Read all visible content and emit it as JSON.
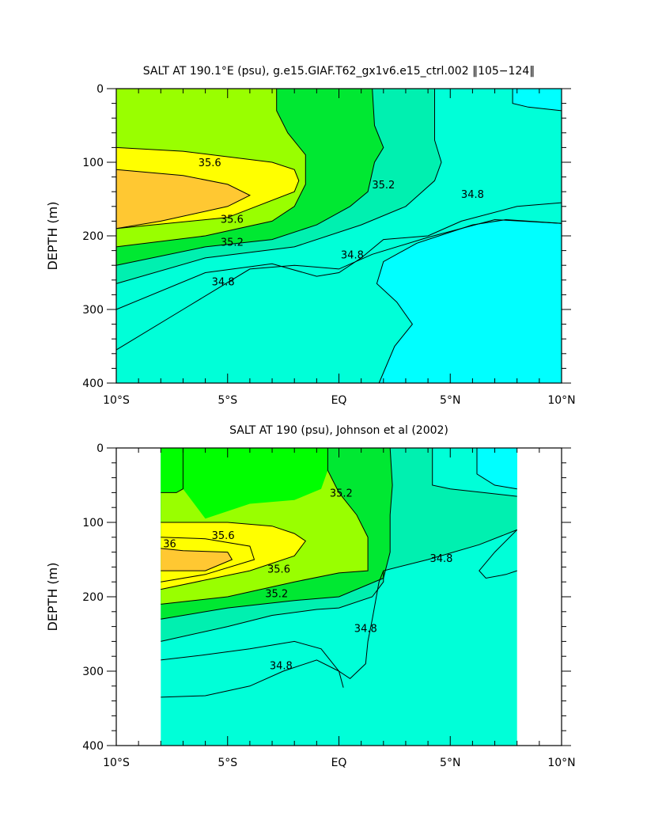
{
  "colors": {
    "s35_0": "#00ffd8",
    "s35_2": "#00f0b0",
    "s35_4": "#00e832",
    "s35_6": "#00ff00",
    "s35_8": "#99ff00",
    "s36_0": "#ffff00",
    "s36_2": "#ffc832",
    "below": "#00ffff"
  },
  "chart_data": [
    {
      "type": "heatmap",
      "title": "SALT AT 190.1°E (psu), g.e15.GIAF.T62_gx1v6.e15_ctrl.002 ‖105−124‖",
      "xlabel": "",
      "ylabel": "DEPTH (m)",
      "xlim": [
        -10,
        10
      ],
      "ylim": [
        400,
        0
      ],
      "x_ticks": [
        -10,
        -5,
        0,
        5,
        10
      ],
      "x_tick_labels": [
        "10°S",
        "5°S",
        "EQ",
        "5°N",
        "10°N"
      ],
      "y_ticks": [
        0,
        100,
        200,
        300,
        400
      ],
      "y_tick_labels": [
        "0",
        "100",
        "200",
        "300",
        "400"
      ],
      "contour_labels": [
        {
          "text": "35.6",
          "x": -5.8,
          "y": 100
        },
        {
          "text": "35.2",
          "x": 2.0,
          "y": 130
        },
        {
          "text": "34.8",
          "x": 6.0,
          "y": 143
        },
        {
          "text": "35.6",
          "x": -4.8,
          "y": 177
        },
        {
          "text": "35.2",
          "x": -4.8,
          "y": 208
        },
        {
          "text": "34.8",
          "x": 0.6,
          "y": 225
        },
        {
          "text": "34.8",
          "x": -5.2,
          "y": 262
        }
      ],
      "approx_contours": [
        {
          "level": 35.8,
          "points": [
            [
              -10,
              80
            ],
            [
              -7,
              85
            ],
            [
              -3,
              100
            ],
            [
              -2,
              110
            ],
            [
              -1.8,
              125
            ],
            [
              -2,
              140
            ],
            [
              -5,
              175
            ],
            [
              -10,
              190
            ]
          ]
        },
        {
          "level": 36.0,
          "points": [
            [
              -10,
              110
            ],
            [
              -7,
              118
            ],
            [
              -5,
              130
            ],
            [
              -4,
              145
            ],
            [
              -5,
              160
            ],
            [
              -8,
              180
            ],
            [
              -10,
              190
            ]
          ]
        },
        {
          "level": 35.6,
          "points": [
            [
              -10,
              215
            ],
            [
              -6,
              200
            ],
            [
              -3,
              180
            ],
            [
              -2,
              160
            ],
            [
              -1.5,
              130
            ],
            [
              -1.5,
              90
            ],
            [
              -2.3,
              60
            ],
            [
              -2.8,
              30
            ],
            [
              -2.8,
              0
            ]
          ]
        },
        {
          "level": 35.4,
          "points": [
            [
              -10,
              240
            ],
            [
              -6,
              215
            ],
            [
              -3,
              205
            ],
            [
              -1,
              185
            ],
            [
              0.5,
              160
            ],
            [
              1.3,
              140
            ],
            [
              1.6,
              100
            ],
            [
              2.0,
              80
            ],
            [
              1.6,
              50
            ],
            [
              1.5,
              0
            ]
          ]
        },
        {
          "level": 35.2,
          "points": [
            [
              -10,
              265
            ],
            [
              -6,
              230
            ],
            [
              -2,
              215
            ],
            [
              1,
              185
            ],
            [
              3,
              160
            ],
            [
              4.3,
              125
            ],
            [
              4.6,
              100
            ],
            [
              4.3,
              70
            ],
            [
              4.3,
              0
            ]
          ]
        },
        {
          "level": 35.0,
          "points": [
            [
              -10,
              300
            ],
            [
              -6,
              250
            ],
            [
              -3,
              238
            ],
            [
              -1,
              255
            ],
            [
              0,
              250
            ],
            [
              1,
              230
            ],
            [
              2,
              205
            ],
            [
              4,
              200
            ],
            [
              5.5,
              180
            ],
            [
              8,
              160
            ],
            [
              10,
              155
            ]
          ]
        },
        {
          "level": 34.8,
          "points": [
            [
              -10,
              355
            ],
            [
              -7,
              300
            ],
            [
              -4,
              245
            ],
            [
              -2,
              240
            ],
            [
              0,
              245
            ],
            [
              1.5,
              225
            ],
            [
              4,
              202
            ],
            [
              7,
              178
            ],
            [
              10,
              183
            ]
          ]
        },
        {
          "level": 34.6,
          "points": [
            [
              1.8,
              400
            ],
            [
              2.5,
              350
            ],
            [
              3.3,
              320
            ],
            [
              2.6,
              290
            ],
            [
              1.7,
              265
            ],
            [
              2,
              235
            ],
            [
              3.5,
              210
            ],
            [
              6,
              185
            ],
            [
              7.5,
              178
            ],
            [
              10,
              183
            ]
          ]
        },
        {
          "level": 34.6,
          "points": [
            [
              7.8,
              0
            ],
            [
              7.8,
              20
            ],
            [
              8.5,
              25
            ],
            [
              10,
              30
            ]
          ]
        }
      ]
    },
    {
      "type": "heatmap",
      "title": "SALT AT 190 (psu), Johnson et al (2002)",
      "xlabel": "",
      "ylabel": "DEPTH (m)",
      "xlim": [
        -10,
        10
      ],
      "ylim": [
        400,
        0
      ],
      "data_xrange": [
        -8,
        8
      ],
      "x_ticks": [
        -10,
        -5,
        0,
        5,
        10
      ],
      "x_tick_labels": [
        "10°S",
        "5°S",
        "EQ",
        "5°N",
        "10°N"
      ],
      "y_ticks": [
        0,
        100,
        200,
        300,
        400
      ],
      "y_tick_labels": [
        "0",
        "100",
        "200",
        "300",
        "400"
      ],
      "contour_labels": [
        {
          "text": "35.2",
          "x": 0.1,
          "y": 60
        },
        {
          "text": "35.6",
          "x": -5.2,
          "y": 117
        },
        {
          "text": "36",
          "x": -7.6,
          "y": 128
        },
        {
          "text": "34.8",
          "x": 4.6,
          "y": 148
        },
        {
          "text": "35.6",
          "x": -2.7,
          "y": 162
        },
        {
          "text": "35.2",
          "x": -2.8,
          "y": 195
        },
        {
          "text": "34.8",
          "x": 1.2,
          "y": 242
        },
        {
          "text": "34.8",
          "x": -2.6,
          "y": 292
        }
      ],
      "approx_contours": [
        {
          "level": 35.4,
          "points": [
            [
              -8,
              60
            ],
            [
              -7.3,
              60
            ],
            [
              -7,
              55
            ],
            [
              -7,
              0
            ]
          ]
        },
        {
          "level": 35.6,
          "points": [
            [
              -8,
              100
            ],
            [
              -5,
              100
            ],
            [
              -3,
              105
            ],
            [
              -2,
              115
            ],
            [
              -1.5,
              125
            ],
            [
              -2,
              145
            ],
            [
              -4,
              165
            ],
            [
              -8,
              190
            ]
          ]
        },
        {
          "level": 35.8,
          "points": [
            [
              -8,
              120
            ],
            [
              -6,
              122
            ],
            [
              -4,
              132
            ],
            [
              -3.8,
              150
            ],
            [
              -6,
              170
            ],
            [
              -8,
              180
            ]
          ]
        },
        {
          "level": 36.0,
          "points": [
            [
              -8,
              135
            ],
            [
              -7,
              138
            ],
            [
              -5,
              140
            ],
            [
              -4.8,
              150
            ],
            [
              -6,
              165
            ],
            [
              -8,
              165
            ]
          ]
        },
        {
          "level": 35.4,
          "points": [
            [
              -8,
              210
            ],
            [
              -5,
              200
            ],
            [
              -2,
              180
            ],
            [
              0,
              168
            ],
            [
              1.3,
              165
            ],
            [
              1.3,
              120
            ],
            [
              0.8,
              90
            ],
            [
              0,
              60
            ],
            [
              -0.5,
              30
            ],
            [
              -0.5,
              0
            ]
          ]
        },
        {
          "level": 35.2,
          "points": [
            [
              -8,
              230
            ],
            [
              -5,
              215
            ],
            [
              -2,
              205
            ],
            [
              0,
              200
            ],
            [
              2,
              175
            ],
            [
              2.3,
              140
            ],
            [
              2.3,
              90
            ],
            [
              2.4,
              50
            ],
            [
              2.3,
              0
            ]
          ]
        },
        {
          "level": 35.0,
          "points": [
            [
              -8,
              260
            ],
            [
              -5,
              240
            ],
            [
              -3,
              225
            ],
            [
              -1,
              217
            ],
            [
              0,
              215
            ],
            [
              1.5,
              200
            ],
            [
              2,
              180
            ],
            [
              2,
              165
            ],
            [
              4,
              150
            ],
            [
              6.3,
              130
            ],
            [
              8,
              110
            ]
          ]
        },
        {
          "level": 34.8,
          "points": [
            [
              -8,
              285
            ],
            [
              -6,
              278
            ],
            [
              -4,
              270
            ],
            [
              -2,
              260
            ],
            [
              -0.8,
              270
            ],
            [
              0,
              300
            ],
            [
              0.5,
              310
            ],
            [
              1.2,
              290
            ],
            [
              1.3,
              260
            ],
            [
              1.5,
              230
            ],
            [
              1.8,
              180
            ],
            [
              2,
              165
            ]
          ]
        },
        {
          "level": 34.6,
          "points": [
            [
              -8,
              335
            ],
            [
              -6,
              333
            ],
            [
              -4,
              320
            ],
            [
              -2.5,
              300
            ],
            [
              -1,
              285
            ],
            [
              0,
              300
            ],
            [
              0.2,
              322
            ]
          ]
        },
        {
          "level": 34.6,
          "points": [
            [
              4.2,
              0
            ],
            [
              4.2,
              50
            ],
            [
              5,
              55
            ],
            [
              6.5,
              60
            ],
            [
              8,
              65
            ]
          ]
        },
        {
          "level": 34.4,
          "points": [
            [
              6.2,
              0
            ],
            [
              6.2,
              35
            ],
            [
              7,
              50
            ],
            [
              8,
              55
            ]
          ]
        },
        {
          "level": 34.4,
          "points": [
            [
              8,
              110
            ],
            [
              7,
              140
            ],
            [
              6.3,
              165
            ],
            [
              6.6,
              175
            ],
            [
              7.5,
              170
            ],
            [
              8,
              165
            ]
          ]
        }
      ]
    }
  ]
}
